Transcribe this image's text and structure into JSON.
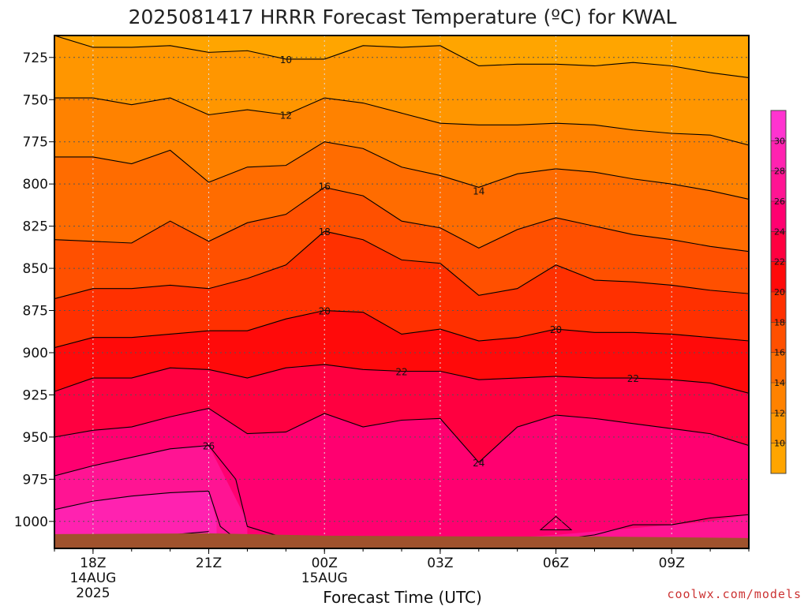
{
  "title": "2025081417 HRRR Forecast Temperature (ºC) for KWAL",
  "credit": "coolwx.com/models",
  "chart_data": {
    "type": "contour",
    "title": "2025081417 HRRR Forecast Temperature (ºC) for KWAL",
    "xlabel": "Forecast Time (UTC)",
    "ylabel": "",
    "x_hours": [
      17,
      18,
      19,
      20,
      21,
      22,
      23,
      24,
      25,
      26,
      27,
      28,
      29,
      30,
      31,
      32,
      33,
      34,
      35
    ],
    "x_ticks": [
      {
        "hour": 18,
        "lines": [
          "18Z",
          "14AUG",
          "2025"
        ]
      },
      {
        "hour": 21,
        "lines": [
          "21Z"
        ]
      },
      {
        "hour": 24,
        "lines": [
          "00Z",
          "15AUG"
        ]
      },
      {
        "hour": 27,
        "lines": [
          "03Z"
        ]
      },
      {
        "hour": 30,
        "lines": [
          "06Z"
        ]
      },
      {
        "hour": 33,
        "lines": [
          "09Z"
        ]
      }
    ],
    "y_label_ticks": [
      725,
      750,
      775,
      800,
      825,
      850,
      875,
      900,
      925,
      950,
      975,
      1000
    ],
    "pressure_range_hPa": [
      1016,
      712
    ],
    "ground_pressure_hPa": 1008,
    "contour_interval_C": 2,
    "contours": [
      {
        "level": 10,
        "p": [
          712,
          719,
          719,
          718,
          722,
          721,
          726,
          726,
          718,
          719,
          718,
          730,
          729,
          729,
          730,
          728,
          730,
          734,
          737
        ],
        "labels": [
          [
            23,
            726
          ]
        ]
      },
      {
        "level": 12,
        "p": [
          749,
          749,
          753,
          749,
          759,
          756,
          759,
          749,
          752,
          758,
          764,
          765,
          765,
          764,
          765,
          768,
          770,
          771,
          777
        ],
        "labels": [
          [
            23,
            759
          ]
        ]
      },
      {
        "level": 14,
        "p": [
          784,
          784,
          788,
          780,
          799,
          790,
          789,
          775,
          779,
          790,
          795,
          802,
          794,
          791,
          793,
          797,
          800,
          804,
          809
        ],
        "labels": [
          [
            28,
            804
          ]
        ]
      },
      {
        "level": 16,
        "p": [
          833,
          834,
          835,
          822,
          834,
          823,
          818,
          802,
          807,
          822,
          826,
          838,
          827,
          820,
          825,
          830,
          833,
          837,
          840
        ],
        "labels": [
          [
            24,
            801
          ]
        ]
      },
      {
        "level": 18,
        "p": [
          868,
          862,
          862,
          860,
          862,
          856,
          848,
          828,
          833,
          845,
          847,
          866,
          862,
          848,
          857,
          858,
          860,
          863,
          865
        ],
        "labels": [
          [
            24,
            828
          ]
        ]
      },
      {
        "level": 20,
        "p": [
          897,
          891,
          891,
          889,
          887,
          887,
          880,
          875,
          876,
          889,
          886,
          893,
          891,
          886,
          888,
          888,
          889,
          891,
          893
        ],
        "labels": [
          [
            24,
            875
          ],
          [
            30,
            886
          ]
        ]
      },
      {
        "level": 22,
        "p": [
          923,
          915,
          915,
          909,
          910,
          915,
          909,
          907,
          910,
          911,
          911,
          916,
          915,
          914,
          915,
          915,
          916,
          918,
          924
        ],
        "labels": [
          [
            26,
            911
          ],
          [
            32,
            915
          ]
        ]
      },
      {
        "level": 24,
        "p": [
          950,
          946,
          944,
          938,
          933,
          948,
          947,
          936,
          944,
          940,
          939,
          965,
          944,
          937,
          939,
          942,
          945,
          948,
          955
        ],
        "labels": [
          [
            28,
            965
          ]
        ]
      },
      {
        "level": 26,
        "p": [
          973,
          967,
          962,
          957,
          955
        ],
        "labels": [
          [
            21,
            955
          ]
        ]
      },
      {
        "level": 28,
        "p": [
          993,
          988,
          985,
          983,
          982
        ],
        "labels": []
      }
    ],
    "colorbar": {
      "ticks": [
        10,
        12,
        14,
        16,
        18,
        20,
        22,
        24,
        26,
        28,
        30
      ],
      "range": [
        8,
        32
      ],
      "colors": [
        "#FFA500",
        "#FF9600",
        "#FF8200",
        "#FF6C00",
        "#FF5000",
        "#FF3000",
        "#FF0A0A",
        "#FF0040",
        "#FF0070",
        "#FF1493",
        "#FF22B0",
        "#FF33D0",
        "#FF22FF"
      ]
    }
  }
}
